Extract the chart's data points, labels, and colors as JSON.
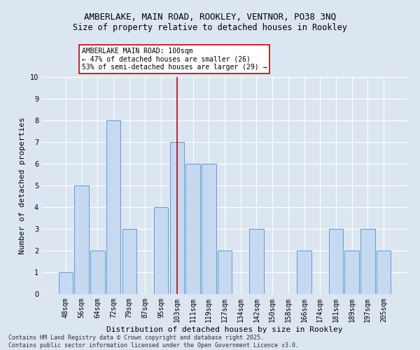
{
  "title1": "AMBERLAKE, MAIN ROAD, ROOKLEY, VENTNOR, PO38 3NQ",
  "title2": "Size of property relative to detached houses in Rookley",
  "xlabel": "Distribution of detached houses by size in Rookley",
  "ylabel": "Number of detached properties",
  "categories": [
    "48sqm",
    "56sqm",
    "64sqm",
    "72sqm",
    "79sqm",
    "87sqm",
    "95sqm",
    "103sqm",
    "111sqm",
    "119sqm",
    "127sqm",
    "134sqm",
    "142sqm",
    "150sqm",
    "158sqm",
    "166sqm",
    "174sqm",
    "181sqm",
    "189sqm",
    "197sqm",
    "205sqm"
  ],
  "values": [
    1,
    5,
    2,
    8,
    3,
    0,
    4,
    7,
    6,
    6,
    2,
    0,
    3,
    0,
    0,
    2,
    0,
    3,
    2,
    3,
    2
  ],
  "bar_color": "#c6d9f1",
  "bar_edge_color": "#5b9bd5",
  "highlight_index": 7,
  "highlight_color": "#c00000",
  "annotation_text": "AMBERLAKE MAIN ROAD: 100sqm\n← 47% of detached houses are smaller (26)\n53% of semi-detached houses are larger (29) →",
  "annotation_box_color": "#ffffff",
  "annotation_box_edge": "#c00000",
  "ylim": [
    0,
    10
  ],
  "yticks": [
    0,
    1,
    2,
    3,
    4,
    5,
    6,
    7,
    8,
    9,
    10
  ],
  "bg_color": "#dce6f1",
  "footer": "Contains HM Land Registry data © Crown copyright and database right 2025.\nContains public sector information licensed under the Open Government Licence v3.0.",
  "grid_color": "#ffffff",
  "title_fontsize": 9,
  "subtitle_fontsize": 8.5,
  "axis_fontsize": 8,
  "tick_fontsize": 7,
  "annot_fontsize": 7,
  "footer_fontsize": 6
}
